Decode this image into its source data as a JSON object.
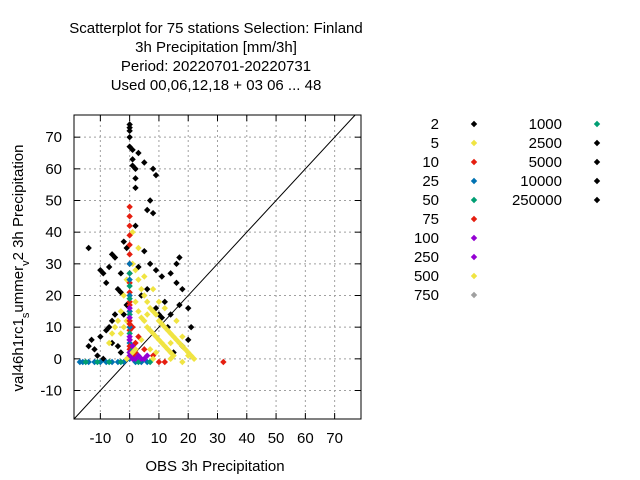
{
  "chart_data": {
    "type": "scatter",
    "title_lines": [
      "Scatterplot for   75 stations Selection: Finland",
      "3h Precipitation [mm/3h]",
      "Period: 20220701-20220731",
      "Used  00,06,12,18  + 03 06 ... 48"
    ],
    "xlabel": "OBS 3h Precipitation",
    "ylabel": "val46h1rc1_summer_v2 3h Precipitation",
    "ylabel_parts": [
      "val46h1rc1",
      "s",
      "ummer",
      "v",
      "2 3h Precipitation"
    ],
    "xlim": [
      -19,
      79
    ],
    "ylim": [
      -19,
      77
    ],
    "xticks": [
      -10,
      0,
      10,
      20,
      30,
      40,
      50,
      60,
      70
    ],
    "yticks": [
      -10,
      0,
      10,
      20,
      30,
      40,
      50,
      60,
      70
    ],
    "grid": true,
    "diagonal": true,
    "legend_position": "right",
    "series": [
      {
        "name": "2",
        "color": "#000000",
        "points": [
          [
            0,
            74
          ],
          [
            0,
            73
          ],
          [
            0,
            72
          ],
          [
            0,
            70
          ],
          [
            0,
            67
          ],
          [
            1,
            66
          ],
          [
            1,
            63
          ],
          [
            1,
            61
          ],
          [
            2,
            60
          ],
          [
            2,
            57
          ],
          [
            2,
            54
          ],
          [
            3,
            65
          ],
          [
            5,
            62
          ],
          [
            8,
            60
          ],
          [
            9,
            58
          ],
          [
            7,
            50
          ],
          [
            6,
            47
          ],
          [
            8,
            46
          ],
          [
            -14,
            35
          ],
          [
            -10,
            28
          ],
          [
            -9,
            27
          ],
          [
            -7,
            29
          ],
          [
            -6,
            33
          ],
          [
            -5,
            32
          ],
          [
            -8,
            24
          ],
          [
            -4,
            22
          ],
          [
            -3,
            21
          ],
          [
            -2,
            37
          ],
          [
            -1,
            35
          ],
          [
            -3,
            27
          ],
          [
            5,
            34
          ],
          [
            7,
            30
          ],
          [
            9,
            28
          ],
          [
            11,
            26
          ],
          [
            14,
            27
          ],
          [
            16,
            30
          ],
          [
            17,
            32
          ],
          [
            16,
            24
          ],
          [
            18,
            22
          ],
          [
            17,
            17
          ],
          [
            20,
            16
          ],
          [
            21,
            10
          ],
          [
            20,
            6
          ],
          [
            18,
            4
          ],
          [
            15,
            2
          ],
          [
            12,
            18
          ],
          [
            14,
            14
          ],
          [
            13,
            10
          ],
          [
            10,
            14
          ],
          [
            -13,
            6
          ],
          [
            -14,
            4
          ],
          [
            -12,
            3
          ],
          [
            -11,
            1
          ],
          [
            -9,
            0
          ],
          [
            -10,
            7
          ],
          [
            -8,
            9
          ],
          [
            -7,
            10
          ],
          [
            -6,
            12
          ],
          [
            -5,
            14
          ],
          [
            -6,
            5
          ],
          [
            -4,
            4
          ],
          [
            -3,
            2
          ],
          [
            -2,
            14
          ],
          [
            -1,
            17
          ],
          [
            2,
            42
          ],
          [
            3,
            29
          ],
          [
            4,
            20
          ],
          [
            6,
            22
          ],
          [
            9,
            16
          ],
          [
            11,
            13
          ]
        ]
      },
      {
        "name": "5",
        "color": "#f0e442",
        "points": [
          [
            1,
            40
          ],
          [
            1,
            30
          ],
          [
            2,
            28
          ],
          [
            3,
            25
          ],
          [
            4,
            22
          ],
          [
            5,
            20
          ],
          [
            6,
            18
          ],
          [
            7,
            16
          ],
          [
            8,
            15
          ],
          [
            9,
            14
          ],
          [
            10,
            12
          ],
          [
            11,
            11
          ],
          [
            12,
            10
          ],
          [
            13,
            9
          ],
          [
            14,
            8
          ],
          [
            15,
            7
          ],
          [
            16,
            6
          ],
          [
            17,
            5
          ],
          [
            18,
            4
          ],
          [
            19,
            3
          ],
          [
            20,
            2
          ],
          [
            21,
            1
          ],
          [
            2,
            18
          ],
          [
            3,
            15
          ],
          [
            4,
            13
          ],
          [
            5,
            12
          ],
          [
            6,
            10
          ],
          [
            7,
            9
          ],
          [
            8,
            8
          ],
          [
            9,
            7
          ],
          [
            10,
            6
          ],
          [
            11,
            5
          ],
          [
            12,
            4
          ],
          [
            13,
            3
          ],
          [
            14,
            2
          ],
          [
            15,
            1
          ],
          [
            -1,
            25
          ],
          [
            -2,
            20
          ],
          [
            -3,
            15
          ],
          [
            -4,
            12
          ],
          [
            -5,
            10
          ],
          [
            -6,
            8
          ],
          [
            -7,
            5
          ],
          [
            -3,
            8
          ],
          [
            -2,
            10
          ],
          [
            -1,
            12
          ],
          [
            3,
            35
          ],
          [
            5,
            26
          ],
          [
            8,
            22
          ],
          [
            6,
            14
          ],
          [
            10,
            18
          ],
          [
            12,
            16
          ],
          [
            4,
            6
          ],
          [
            7,
            3
          ],
          [
            9,
            2
          ],
          [
            16,
            12
          ],
          [
            14,
            5
          ],
          [
            18,
            7
          ],
          [
            20,
            1
          ],
          [
            22,
            0
          ]
        ]
      },
      {
        "name": "10",
        "color": "#e51e10",
        "points": [
          [
            0,
            48
          ],
          [
            0,
            45
          ],
          [
            0,
            42
          ],
          [
            0,
            39
          ],
          [
            0,
            36
          ],
          [
            0,
            33
          ],
          [
            0,
            30
          ],
          [
            0,
            27
          ],
          [
            0,
            24
          ],
          [
            0,
            21
          ],
          [
            0,
            18
          ],
          [
            0,
            15
          ],
          [
            0,
            12
          ],
          [
            0,
            9
          ],
          [
            0,
            6
          ],
          [
            0,
            3
          ],
          [
            1,
            10
          ],
          [
            2,
            5
          ],
          [
            3,
            7
          ],
          [
            5,
            3
          ],
          [
            8,
            1
          ],
          [
            32,
            -1
          ]
        ]
      },
      {
        "name": "25",
        "color": "#0072b2",
        "points": [
          [
            -17,
            -1
          ],
          [
            -16,
            -1
          ],
          [
            -14,
            -1
          ],
          [
            -12,
            -1
          ],
          [
            -10,
            -1
          ],
          [
            -8,
            -1
          ],
          [
            -6,
            -1
          ],
          [
            -4,
            -1
          ],
          [
            -2,
            -1
          ],
          [
            0,
            0
          ],
          [
            0,
            5
          ],
          [
            0,
            10
          ],
          [
            0,
            15
          ],
          [
            0,
            20
          ],
          [
            0,
            25
          ],
          [
            0,
            30
          ],
          [
            2,
            -1
          ],
          [
            4,
            -1
          ],
          [
            6,
            -1
          ]
        ]
      },
      {
        "name": "50",
        "color": "#009e73",
        "points": [
          [
            -15,
            -1
          ],
          [
            -11,
            -1
          ],
          [
            -7,
            -1
          ],
          [
            -3,
            -1
          ],
          [
            0,
            2
          ],
          [
            0,
            8
          ],
          [
            0,
            14
          ],
          [
            0,
            19
          ],
          [
            0,
            23
          ],
          [
            0,
            27
          ],
          [
            1,
            3
          ],
          [
            3,
            -1
          ],
          [
            7,
            -1
          ]
        ]
      },
      {
        "name": "75",
        "color": "#e51e10",
        "points": [
          [
            0,
            4
          ],
          [
            0,
            11
          ],
          [
            0,
            17
          ],
          [
            1,
            1
          ],
          [
            2,
            2
          ],
          [
            10,
            -1
          ],
          [
            12,
            -1
          ]
        ]
      },
      {
        "name": "100",
        "color": "#9400d3",
        "points": [
          [
            0,
            1
          ],
          [
            0,
            7
          ],
          [
            0,
            13
          ],
          [
            0,
            16
          ],
          [
            1,
            0
          ],
          [
            2,
            0
          ],
          [
            4,
            0
          ],
          [
            6,
            1
          ]
        ]
      },
      {
        "name": "250",
        "color": "#9400d3",
        "points": [
          [
            0,
            2
          ],
          [
            0,
            6
          ],
          [
            1,
            4
          ],
          [
            3,
            1
          ],
          [
            5,
            0
          ]
        ]
      },
      {
        "name": "500",
        "color": "#f0e442",
        "points": [
          [
            -1,
            0
          ],
          [
            1,
            2
          ],
          [
            2,
            3
          ],
          [
            8,
            0
          ],
          [
            14,
            0
          ],
          [
            18,
            -1
          ]
        ]
      },
      {
        "name": "750",
        "color": "#a0a0a0",
        "points": []
      },
      {
        "name": "1000",
        "color": "#009e73",
        "points": []
      },
      {
        "name": "2500",
        "color": "#000000",
        "points": []
      },
      {
        "name": "5000",
        "color": "#000000",
        "points": []
      },
      {
        "name": "10000",
        "color": "#000000",
        "points": []
      },
      {
        "name": "250000",
        "color": "#000000",
        "points": []
      }
    ]
  }
}
